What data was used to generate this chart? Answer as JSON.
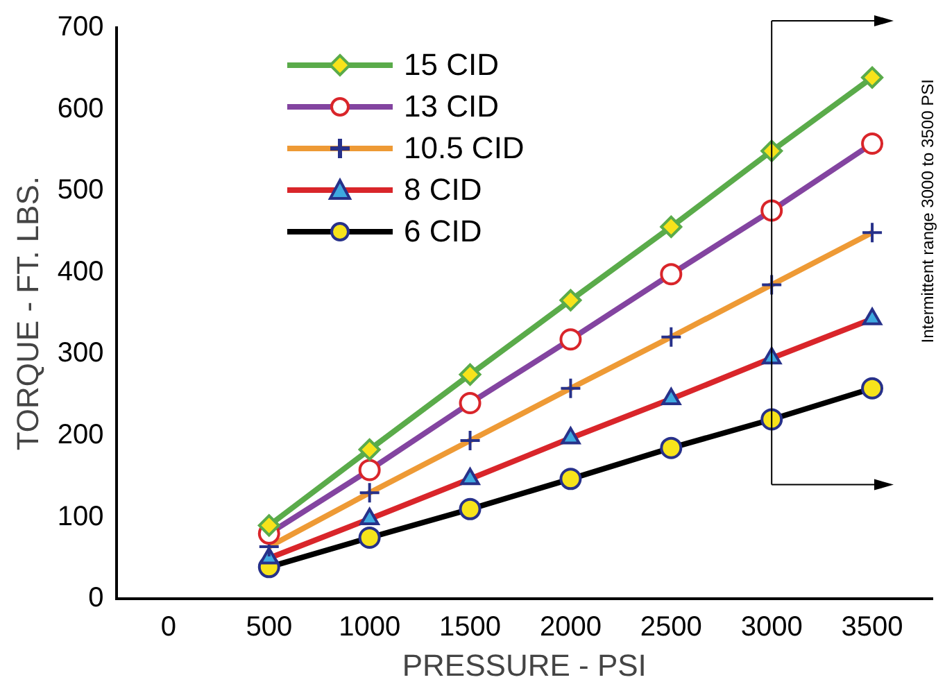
{
  "chart_data": {
    "type": "line",
    "xlabel": "PRESSURE - PSI",
    "ylabel": "TORQUE - FT. LBS.",
    "x": [
      500,
      1000,
      1500,
      2000,
      2500,
      3000,
      3500
    ],
    "series": [
      {
        "name": "15 CID",
        "color": "#5aab4a",
        "marker": "diamond",
        "values": [
          90,
          183,
          275,
          366,
          456,
          549,
          639
        ]
      },
      {
        "name": "13 CID",
        "color": "#8344a0",
        "marker": "circle",
        "values": [
          80,
          158,
          240,
          318,
          398,
          476,
          558
        ]
      },
      {
        "name": "10.5 CID",
        "color": "#ee9a35",
        "marker": "cross",
        "values": [
          64,
          130,
          194,
          258,
          321,
          385,
          449
        ]
      },
      {
        "name": "8 CID",
        "color": "#d9252a",
        "marker": "triangle",
        "values": [
          50,
          98,
          147,
          197,
          245,
          295,
          343
        ]
      },
      {
        "name": "6 CID",
        "color": "#000000",
        "marker": "circle",
        "values": [
          39,
          75,
          110,
          147,
          185,
          220,
          258
        ]
      }
    ],
    "xlim": [
      -260,
      3800
    ],
    "xticks": [
      0,
      500,
      1000,
      1500,
      2000,
      2500,
      3000,
      3500
    ],
    "ylim": [
      0,
      700
    ],
    "yticks": [
      0,
      100,
      200,
      300,
      400,
      500,
      600,
      700
    ],
    "grid": false,
    "legend": "top left",
    "line_style": "solid",
    "ref_lines": [
      {
        "axis": "x",
        "value": 3000
      }
    ],
    "annotations": [
      "Intermittent range 3000 to 3500 PSI"
    ]
  }
}
